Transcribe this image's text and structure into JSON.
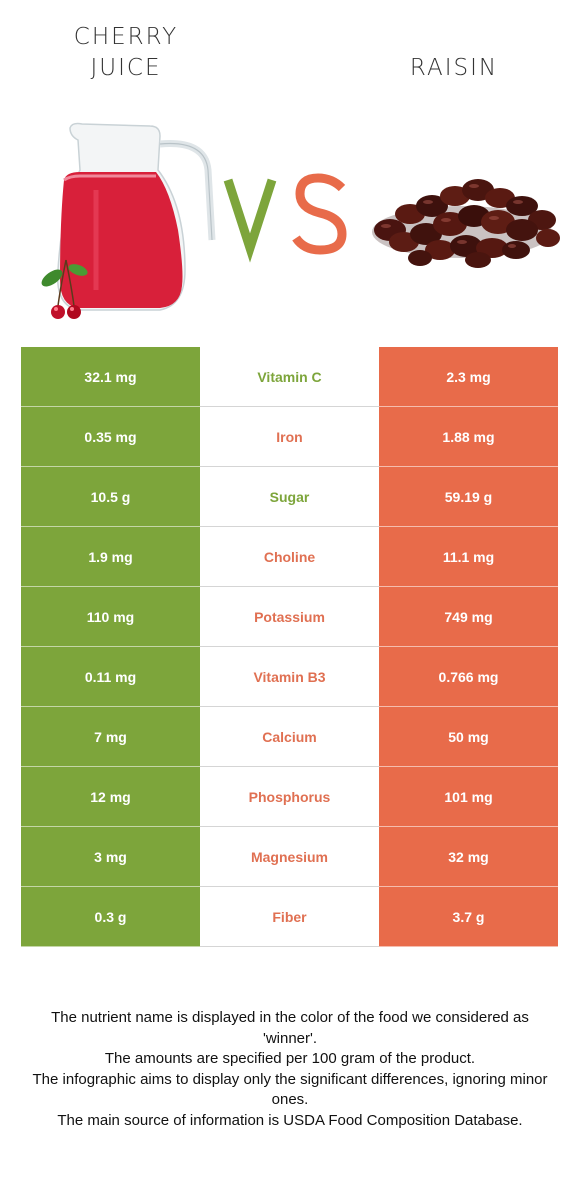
{
  "left_food": {
    "name_line1": "CHERRY",
    "name_line2": "JUICE",
    "color": "#7da53b"
  },
  "right_food": {
    "name": "RAISIN",
    "color": "#e86b4a"
  },
  "vs_text": "VS",
  "rows": [
    {
      "left": "32.1 mg",
      "nutrient": "Vitamin C",
      "right": "2.3 mg",
      "winner": "left"
    },
    {
      "left": "0.35 mg",
      "nutrient": "Iron",
      "right": "1.88 mg",
      "winner": "right"
    },
    {
      "left": "10.5 g",
      "nutrient": "Sugar",
      "right": "59.19 g",
      "winner": "left"
    },
    {
      "left": "1.9 mg",
      "nutrient": "Choline",
      "right": "11.1 mg",
      "winner": "right"
    },
    {
      "left": "110 mg",
      "nutrient": "Potassium",
      "right": "749 mg",
      "winner": "right"
    },
    {
      "left": "0.11 mg",
      "nutrient": "Vitamin B3",
      "right": "0.766 mg",
      "winner": "right"
    },
    {
      "left": "7 mg",
      "nutrient": "Calcium",
      "right": "50 mg",
      "winner": "right"
    },
    {
      "left": "12 mg",
      "nutrient": "Phosphorus",
      "right": "101 mg",
      "winner": "right"
    },
    {
      "left": "3 mg",
      "nutrient": "Magnesium",
      "right": "32 mg",
      "winner": "right"
    },
    {
      "left": "0.3 g",
      "nutrient": "Fiber",
      "right": "3.7 g",
      "winner": "right"
    }
  ],
  "notes": [
    "The nutrient name is displayed in the color of the food we considered as 'winner'.",
    "The amounts are specified per 100 gram of the product.",
    "The infographic aims to display only the significant differences, ignoring minor ones.",
    "The main source of information is USDA Food Composition Database."
  ],
  "images": {
    "left": "cherry-juice-pitcher",
    "right": "raisins-pile"
  }
}
